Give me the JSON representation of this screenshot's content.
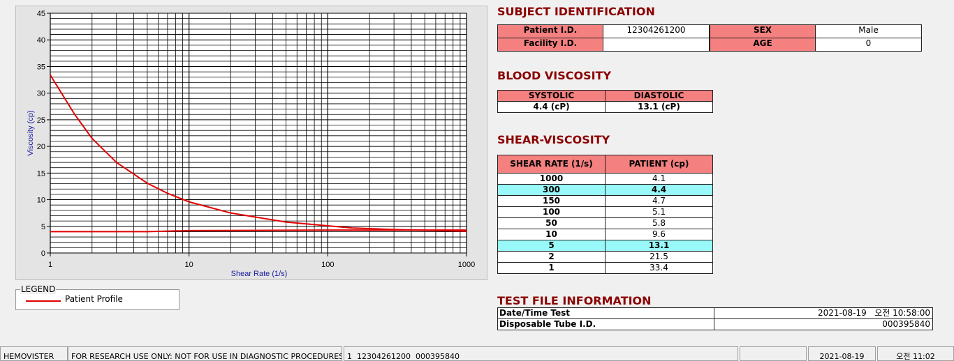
{
  "chart_data": {
    "type": "line",
    "x_label": "Shear Rate (1/s)",
    "y_label": "Viscosity (cp)",
    "log_x": true,
    "grid": true,
    "xlim": [
      1,
      1000
    ],
    "xticks": [
      1,
      10,
      100,
      1000
    ],
    "ylim": [
      0,
      45
    ],
    "yticks": [
      0,
      5,
      10,
      15,
      20,
      25,
      30,
      35,
      40,
      45
    ],
    "series": [
      {
        "name": "Patient Profile",
        "color": "#e00000",
        "x": [
          1,
          1.5,
          2,
          3,
          5,
          7,
          10,
          20,
          50,
          100,
          150,
          300,
          1000
        ],
        "values": [
          33.4,
          26,
          21.5,
          17,
          13.1,
          11.2,
          9.6,
          7.5,
          5.8,
          5.1,
          4.7,
          4.4,
          4.1
        ]
      },
      {
        "color": "#e00000",
        "x": [
          1,
          5,
          10,
          100,
          1000
        ],
        "values": [
          4.0,
          4.0,
          4.2,
          4.3,
          4.3
        ]
      }
    ],
    "legend_title": "LEGEND"
  },
  "subject": {
    "title": "SUBJECT IDENTIFICATION",
    "fields": [
      {
        "label": "Patient I.D.",
        "value": "12304261200"
      },
      {
        "label": "SEX",
        "value": "Male"
      },
      {
        "label": "Facility I.D."
      },
      {
        "label": "AGE",
        "value": "0"
      }
    ]
  },
  "blood_viscosity": {
    "title": "BLOOD VISCOSITY",
    "headers": [
      "SYSTOLIC",
      "DIASTOLIC"
    ],
    "values": [
      "4.4 (cP)",
      "13.1 (cP)"
    ]
  },
  "shear_viscosity": {
    "title": "SHEAR-VISCOSITY",
    "headers": [
      "SHEAR RATE (1/s)",
      "PATIENT (cp)"
    ],
    "rows": [
      {
        "rate": 1000,
        "viscosity": 4.1
      },
      {
        "rate": 300,
        "viscosity": 4.4,
        "highlight": true
      },
      {
        "rate": 150,
        "viscosity": 4.7
      },
      {
        "rate": 100,
        "viscosity": 5.1
      },
      {
        "rate": 50,
        "viscosity": 5.8
      },
      {
        "rate": 10,
        "viscosity": 9.6
      },
      {
        "rate": 5,
        "viscosity": 13.1,
        "highlight": true
      },
      {
        "rate": 2,
        "viscosity": 21.5
      },
      {
        "rate": 1,
        "viscosity": 33.4
      }
    ]
  },
  "test_file": {
    "title": "TEST FILE INFORMATION",
    "rows": [
      [
        "Date/Time Test",
        "2021-08-19   오전 10:58:00"
      ],
      [
        "Disposable Tube I.D.",
        "000395840"
      ]
    ]
  },
  "status_bar": [
    "HEMOVISTER",
    "FOR RESEARCH USE ONLY: NOT FOR USE IN DIAGNOSTIC PROCEDURES",
    "1  12304261200  000395840",
    "2021-08-19",
    "오전 11:02"
  ]
}
